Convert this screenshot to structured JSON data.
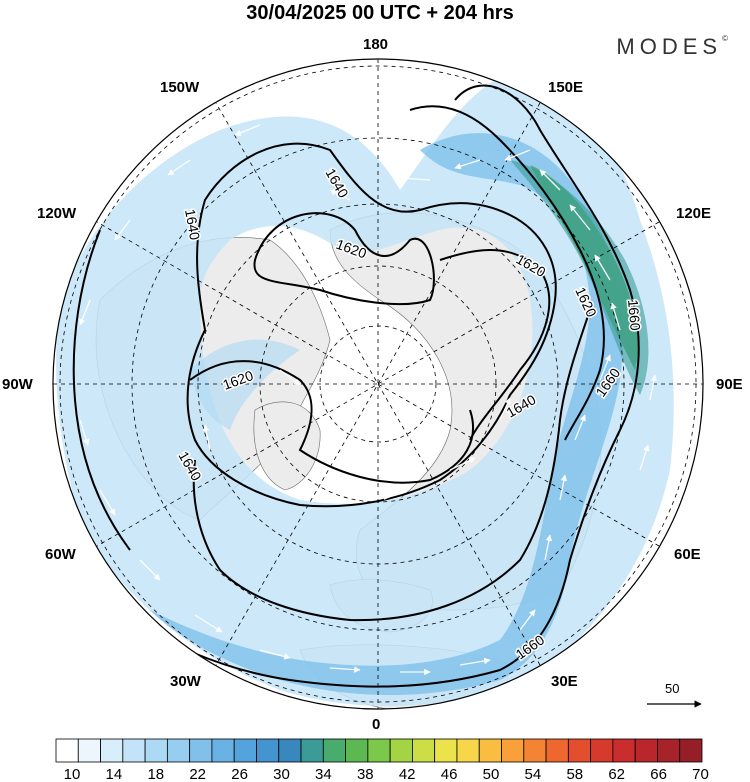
{
  "header": {
    "title": "30/04/2025  00 UTC  + 204 hrs",
    "brand": "MODES",
    "brand_mark": "©"
  },
  "map": {
    "projection": "north-polar-stereographic",
    "longitude_labels": {
      "top": "180",
      "top_right": "150E",
      "right_upper": "120E",
      "right": "90E",
      "right_lower": "60E",
      "bottom_right": "30E",
      "bottom": "0",
      "bottom_left": "30W",
      "left_lower": "60W",
      "left": "90W",
      "left_upper": "120W",
      "top_left": "150W"
    },
    "contour_labels": [
      "1640",
      "1620",
      "1640",
      "1620",
      "1620",
      "1640",
      "1620",
      "1640",
      "1660",
      "1660",
      "1660"
    ],
    "reference_vector": "50"
  },
  "colorbar": {
    "tick_labels": [
      "10",
      "14",
      "18",
      "22",
      "26",
      "30",
      "34",
      "38",
      "42",
      "46",
      "50",
      "54",
      "58",
      "62",
      "66",
      "70"
    ],
    "colors": [
      "#ffffff",
      "#ebf6fd",
      "#d9eefb",
      "#c3e4f8",
      "#acd9f4",
      "#96cdf0",
      "#80c0eb",
      "#6ab2e4",
      "#55a3dc",
      "#4394cf",
      "#3888bd",
      "#3b9c97",
      "#47ac6c",
      "#5cb951",
      "#7cc84a",
      "#a3d444",
      "#cbde46",
      "#ebe34c",
      "#f7d649",
      "#f9bd41",
      "#f9a03a",
      "#f58334",
      "#ed672f",
      "#e34e2c",
      "#d63a2c",
      "#c92d2d",
      "#b9272c",
      "#a8222a",
      "#961e27"
    ]
  }
}
